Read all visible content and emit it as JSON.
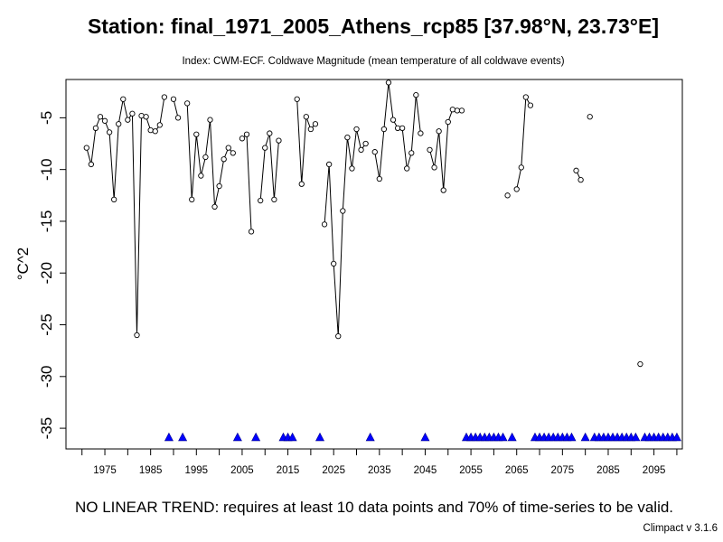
{
  "chart_data": {
    "type": "line",
    "title": "Station: final_1971_2005_Athens_rcp85 [37.98°N, 23.73°E]",
    "subtitle": "Index: CWM-ECF. Coldwave Magnitude (mean temperature of all coldwave events)",
    "ylabel": "°C^2",
    "xlabel": "",
    "trend_note": "NO LINEAR TREND: requires at least 10 data points and 70% of time-series to be valid.",
    "footer": "Climpact v 3.1.6",
    "x_ticks": [
      1975,
      1985,
      1995,
      2005,
      2015,
      2025,
      2035,
      2045,
      2055,
      2065,
      2075,
      2085,
      2095
    ],
    "y_ticks": [
      -5,
      -10,
      -15,
      -20,
      -25,
      -30,
      -35
    ],
    "xlim": [
      1966.5,
      2101.2
    ],
    "ylim": [
      -37.0,
      -1.3
    ],
    "grid": false,
    "legend": "none",
    "point_color": "#000000",
    "line_color": "#000000",
    "missing_marker_color": "#0000ff",
    "missing_marker_value": -35.9,
    "series": [
      {
        "points": [
          [
            1971,
            -7.9
          ],
          [
            1972,
            -9.5
          ],
          [
            1973,
            -6.0
          ],
          [
            1974,
            -4.9
          ],
          [
            1975,
            -5.3
          ],
          [
            1976,
            -6.4
          ],
          [
            1977,
            -12.9
          ],
          [
            1978,
            -5.6
          ],
          [
            1979,
            -3.2
          ],
          [
            1980,
            -5.2
          ],
          [
            1981,
            -4.6
          ],
          [
            1982,
            -26.0
          ],
          [
            1983,
            -4.8
          ],
          [
            1984,
            -4.9
          ],
          [
            1985,
            -6.2
          ],
          [
            1986,
            -6.3
          ],
          [
            1987,
            -5.7
          ],
          [
            1988,
            -3.0
          ],
          [
            1989,
            null
          ],
          [
            1990,
            -3.2
          ],
          [
            1991,
            -5.0
          ],
          [
            1992,
            null
          ],
          [
            1993,
            -3.6
          ],
          [
            1994,
            -12.9
          ],
          [
            1995,
            -6.6
          ],
          [
            1996,
            -10.6
          ],
          [
            1997,
            -8.8
          ],
          [
            1998,
            -5.2
          ],
          [
            1999,
            -13.6
          ],
          [
            2000,
            -11.6
          ],
          [
            2001,
            -9.0
          ],
          [
            2002,
            -7.9
          ],
          [
            2003,
            -8.4
          ],
          [
            2004,
            null
          ],
          [
            2005,
            -7.0
          ],
          [
            2006,
            -6.6
          ],
          [
            2007,
            -16.0
          ],
          [
            2008,
            null
          ],
          [
            2009,
            -13.0
          ],
          [
            2010,
            -7.9
          ],
          [
            2011,
            -6.5
          ],
          [
            2012,
            -12.9
          ],
          [
            2013,
            -7.2
          ],
          [
            2014,
            null
          ],
          [
            2015,
            null
          ],
          [
            2016,
            null
          ],
          [
            2017,
            -3.2
          ],
          [
            2018,
            -11.4
          ],
          [
            2019,
            -4.9
          ],
          [
            2020,
            -6.1
          ],
          [
            2021,
            -5.6
          ],
          [
            2022,
            null
          ],
          [
            2023,
            -15.3
          ],
          [
            2024,
            -9.5
          ],
          [
            2025,
            -19.1
          ],
          [
            2026,
            -26.1
          ],
          [
            2027,
            -14.0
          ],
          [
            2028,
            -6.9
          ],
          [
            2029,
            -9.9
          ],
          [
            2030,
            -6.1
          ],
          [
            2031,
            -8.1
          ],
          [
            2032,
            -7.5
          ],
          [
            2033,
            null
          ],
          [
            2034,
            -8.3
          ],
          [
            2035,
            -10.9
          ],
          [
            2036,
            -6.1
          ],
          [
            2037,
            -1.6
          ],
          [
            2038,
            -5.2
          ],
          [
            2039,
            -6.0
          ],
          [
            2040,
            -6.0
          ],
          [
            2041,
            -9.9
          ],
          [
            2042,
            -8.4
          ],
          [
            2043,
            -2.8
          ],
          [
            2044,
            -6.5
          ],
          [
            2045,
            null
          ],
          [
            2046,
            -8.1
          ],
          [
            2047,
            -9.8
          ],
          [
            2048,
            -6.3
          ],
          [
            2049,
            -12.0
          ],
          [
            2050,
            -5.4
          ],
          [
            2051,
            -4.2
          ],
          [
            2052,
            -4.3
          ],
          [
            2053,
            -4.3
          ],
          [
            2054,
            null
          ],
          [
            2055,
            null
          ],
          [
            2056,
            null
          ],
          [
            2057,
            null
          ],
          [
            2058,
            null
          ],
          [
            2059,
            null
          ],
          [
            2060,
            null
          ],
          [
            2061,
            null
          ],
          [
            2062,
            null
          ],
          [
            2063,
            -12.5
          ],
          [
            2064,
            null
          ],
          [
            2065,
            -11.9
          ],
          [
            2066,
            -9.8
          ],
          [
            2067,
            -3.0
          ],
          [
            2068,
            -3.8
          ],
          [
            2069,
            null
          ],
          [
            2070,
            null
          ],
          [
            2071,
            null
          ],
          [
            2072,
            null
          ],
          [
            2073,
            null
          ],
          [
            2074,
            null
          ],
          [
            2075,
            null
          ],
          [
            2076,
            null
          ],
          [
            2077,
            null
          ],
          [
            2078,
            -10.1
          ],
          [
            2079,
            -11.0
          ],
          [
            2080,
            null
          ],
          [
            2081,
            -4.9
          ],
          [
            2082,
            null
          ],
          [
            2083,
            null
          ],
          [
            2084,
            null
          ],
          [
            2085,
            null
          ],
          [
            2086,
            null
          ],
          [
            2087,
            null
          ],
          [
            2088,
            null
          ],
          [
            2089,
            null
          ],
          [
            2090,
            null
          ],
          [
            2091,
            null
          ],
          [
            2092,
            -28.8
          ],
          [
            2093,
            null
          ],
          [
            2094,
            null
          ],
          [
            2095,
            null
          ],
          [
            2096,
            null
          ],
          [
            2097,
            null
          ],
          [
            2098,
            null
          ],
          [
            2099,
            null
          ],
          [
            2100,
            null
          ]
        ]
      }
    ]
  }
}
